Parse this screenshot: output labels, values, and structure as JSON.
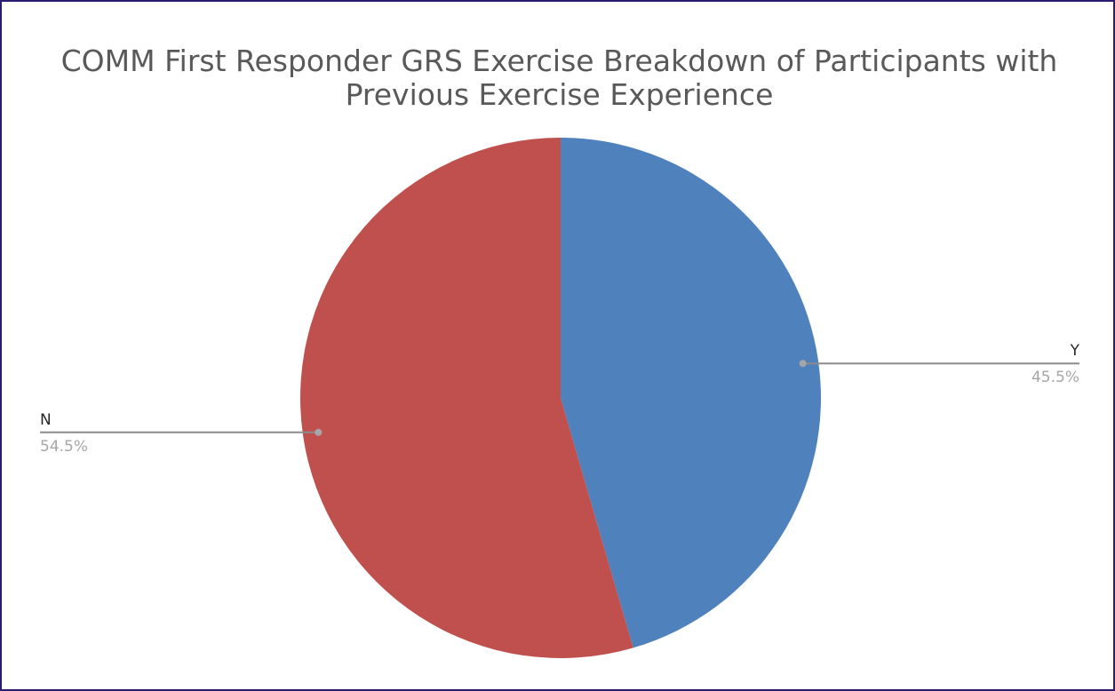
{
  "chart_data": {
    "type": "pie",
    "title": "COMM First Responder GRS Exercise Breakdown of Participants with Previous Exercise Experience",
    "categories": [
      "Y",
      "N"
    ],
    "values": [
      45.5,
      54.5
    ],
    "value_labels": [
      "45.5%",
      "54.5%"
    ],
    "colors": [
      "#4f81bd",
      "#c0504d"
    ]
  }
}
